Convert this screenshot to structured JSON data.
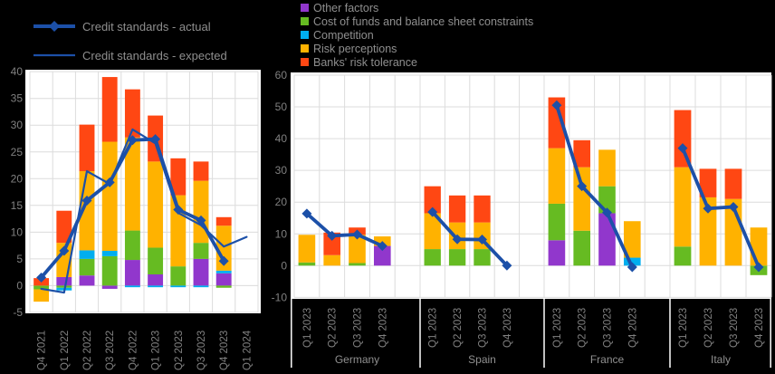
{
  "colors": {
    "line": "#1C50A8",
    "grid": "#DCDCDC",
    "tick_text": "#808080",
    "label_text": "#909090",
    "plot_bg": "#FFFFFF",
    "page_bg": "#000000",
    "separator": "#FFFFFF"
  },
  "legend_lines": [
    {
      "label": "Credit standards - actual",
      "style": "thick-diamond"
    },
    {
      "label": "Credit standards - expected",
      "style": "thin"
    }
  ],
  "legend_series": [
    {
      "label": "Other factors",
      "color": "#9137CC"
    },
    {
      "label": "Cost of funds and balance sheet constraints",
      "color": "#66BB22"
    },
    {
      "label": "Competition",
      "color": "#00AEEF"
    },
    {
      "label": "Risk perceptions",
      "color": "#FFB200"
    },
    {
      "label": "Banks' risk tolerance",
      "color": "#FF4713"
    }
  ],
  "chart_data": [
    {
      "id": "euro-area-credit-standards",
      "type": "bar",
      "stacked": true,
      "grid": true,
      "ylim": [
        -5,
        40
      ],
      "ytick_step": 5,
      "categories": [
        "Q4 2021",
        "Q1 2022",
        "Q2 2022",
        "Q3 2022",
        "Q4 2022",
        "Q1 2023",
        "Q2 2023",
        "Q3 2023",
        "Q4 2023",
        "Q1 2024"
      ],
      "series": [
        {
          "name": "Other factors",
          "values": [
            0,
            1.6,
            1.9,
            -0.6,
            4.8,
            2.1,
            0,
            5.0,
            2.3,
            0
          ]
        },
        {
          "name": "Cost of funds and balance sheet constraints",
          "values": [
            -0.7,
            -0.4,
            3.1,
            5.5,
            5.5,
            5.0,
            3.6,
            3.0,
            -0.4,
            0
          ]
        },
        {
          "name": "Competition",
          "values": [
            0,
            -0.5,
            1.6,
            1.0,
            -0.3,
            -0.3,
            -0.3,
            -0.3,
            0.5,
            0
          ]
        },
        {
          "name": "Risk perceptions",
          "values": [
            -2.3,
            6.4,
            14.8,
            20.4,
            17.4,
            16.1,
            13.3,
            11.6,
            8.4,
            0
          ]
        },
        {
          "name": "Banks' risk tolerance",
          "values": [
            1.4,
            6.0,
            8.7,
            12.1,
            9.0,
            8.6,
            6.9,
            3.6,
            1.6,
            0
          ]
        }
      ],
      "lines": [
        {
          "name": "Credit standards - actual",
          "values": [
            1.5,
            6.5,
            15.9,
            19.3,
            27.2,
            27.4,
            14.2,
            12.2,
            4.6,
            null
          ]
        },
        {
          "name": "Credit standards - expected",
          "values": [
            -0.6,
            -1.3,
            21.4,
            19.0,
            29.2,
            26.6,
            13.6,
            11.3,
            7.3,
            9.1
          ]
        }
      ]
    },
    {
      "id": "credit-standards-by-country",
      "type": "bar",
      "stacked": true,
      "grid": true,
      "ylim": [
        -10,
        60
      ],
      "ytick_step": 10,
      "groups": [
        {
          "label": "Germany",
          "categories": [
            "Q1 2023",
            "Q2 2023",
            "Q3 2023",
            "Q4 2023"
          ],
          "series": [
            {
              "name": "Other factors",
              "values": [
                0,
                0,
                0,
                6.2
              ]
            },
            {
              "name": "Cost of funds and balance sheet constraints",
              "values": [
                1.0,
                0,
                0.8,
                0
              ]
            },
            {
              "name": "Competition",
              "values": [
                0,
                0,
                0,
                0
              ]
            },
            {
              "name": "Risk perceptions",
              "values": [
                8.7,
                3.3,
                8.9,
                3.0
              ]
            },
            {
              "name": "Banks' risk tolerance",
              "values": [
                0,
                7.1,
                2.3,
                0
              ]
            }
          ],
          "line": {
            "name": "Credit standards - actual",
            "values": [
              16.4,
              9.4,
              9.8,
              6.2
            ]
          }
        },
        {
          "label": "Spain",
          "categories": [
            "Q1 2023",
            "Q2 2023",
            "Q3 2023",
            "Q4 2023"
          ],
          "series": [
            {
              "name": "Other factors",
              "values": [
                0,
                0,
                0,
                0
              ]
            },
            {
              "name": "Cost of funds and balance sheet constraints",
              "values": [
                5.2,
                5.2,
                5.2,
                0
              ]
            },
            {
              "name": "Competition",
              "values": [
                0,
                0,
                0,
                0
              ]
            },
            {
              "name": "Risk perceptions",
              "values": [
                11.3,
                8.4,
                8.4,
                0
              ]
            },
            {
              "name": "Banks' risk tolerance",
              "values": [
                8.5,
                8.5,
                8.5,
                0
              ]
            }
          ],
          "line": {
            "name": "Credit standards - actual",
            "values": [
              16.9,
              8.3,
              8.2,
              0
            ]
          }
        },
        {
          "label": "France",
          "categories": [
            "Q1 2023",
            "Q2 2023",
            "Q3 2023",
            "Q4 2023"
          ],
          "series": [
            {
              "name": "Other factors",
              "values": [
                8.0,
                0,
                16.5,
                0
              ]
            },
            {
              "name": "Cost of funds and balance sheet constraints",
              "values": [
                11.5,
                11.0,
                8.5,
                0
              ]
            },
            {
              "name": "Competition",
              "values": [
                0,
                0,
                0,
                2.5
              ]
            },
            {
              "name": "Risk perceptions",
              "values": [
                17.5,
                20.0,
                11.5,
                11.5
              ]
            },
            {
              "name": "Banks' risk tolerance",
              "values": [
                16.0,
                8.5,
                0,
                0
              ]
            }
          ],
          "line": {
            "name": "Credit standards - actual",
            "values": [
              50.5,
              25.0,
              16.7,
              -0.5
            ]
          }
        },
        {
          "label": "Italy",
          "categories": [
            "Q1 2023",
            "Q2 2023",
            "Q3 2023",
            "Q4 2023"
          ],
          "series": [
            {
              "name": "Other factors",
              "values": [
                0,
                0,
                0,
                0
              ]
            },
            {
              "name": "Cost of funds and balance sheet constraints",
              "values": [
                6.0,
                0,
                0,
                -3.0
              ]
            },
            {
              "name": "Competition",
              "values": [
                0,
                0,
                0,
                0
              ]
            },
            {
              "name": "Risk perceptions",
              "values": [
                25.0,
                21.5,
                21.0,
                12.0
              ]
            },
            {
              "name": "Banks' risk tolerance",
              "values": [
                18.0,
                9.0,
                9.5,
                0
              ]
            }
          ],
          "line": {
            "name": "Credit standards - actual",
            "values": [
              37.0,
              18.0,
              18.5,
              -0.5
            ]
          }
        }
      ]
    }
  ]
}
